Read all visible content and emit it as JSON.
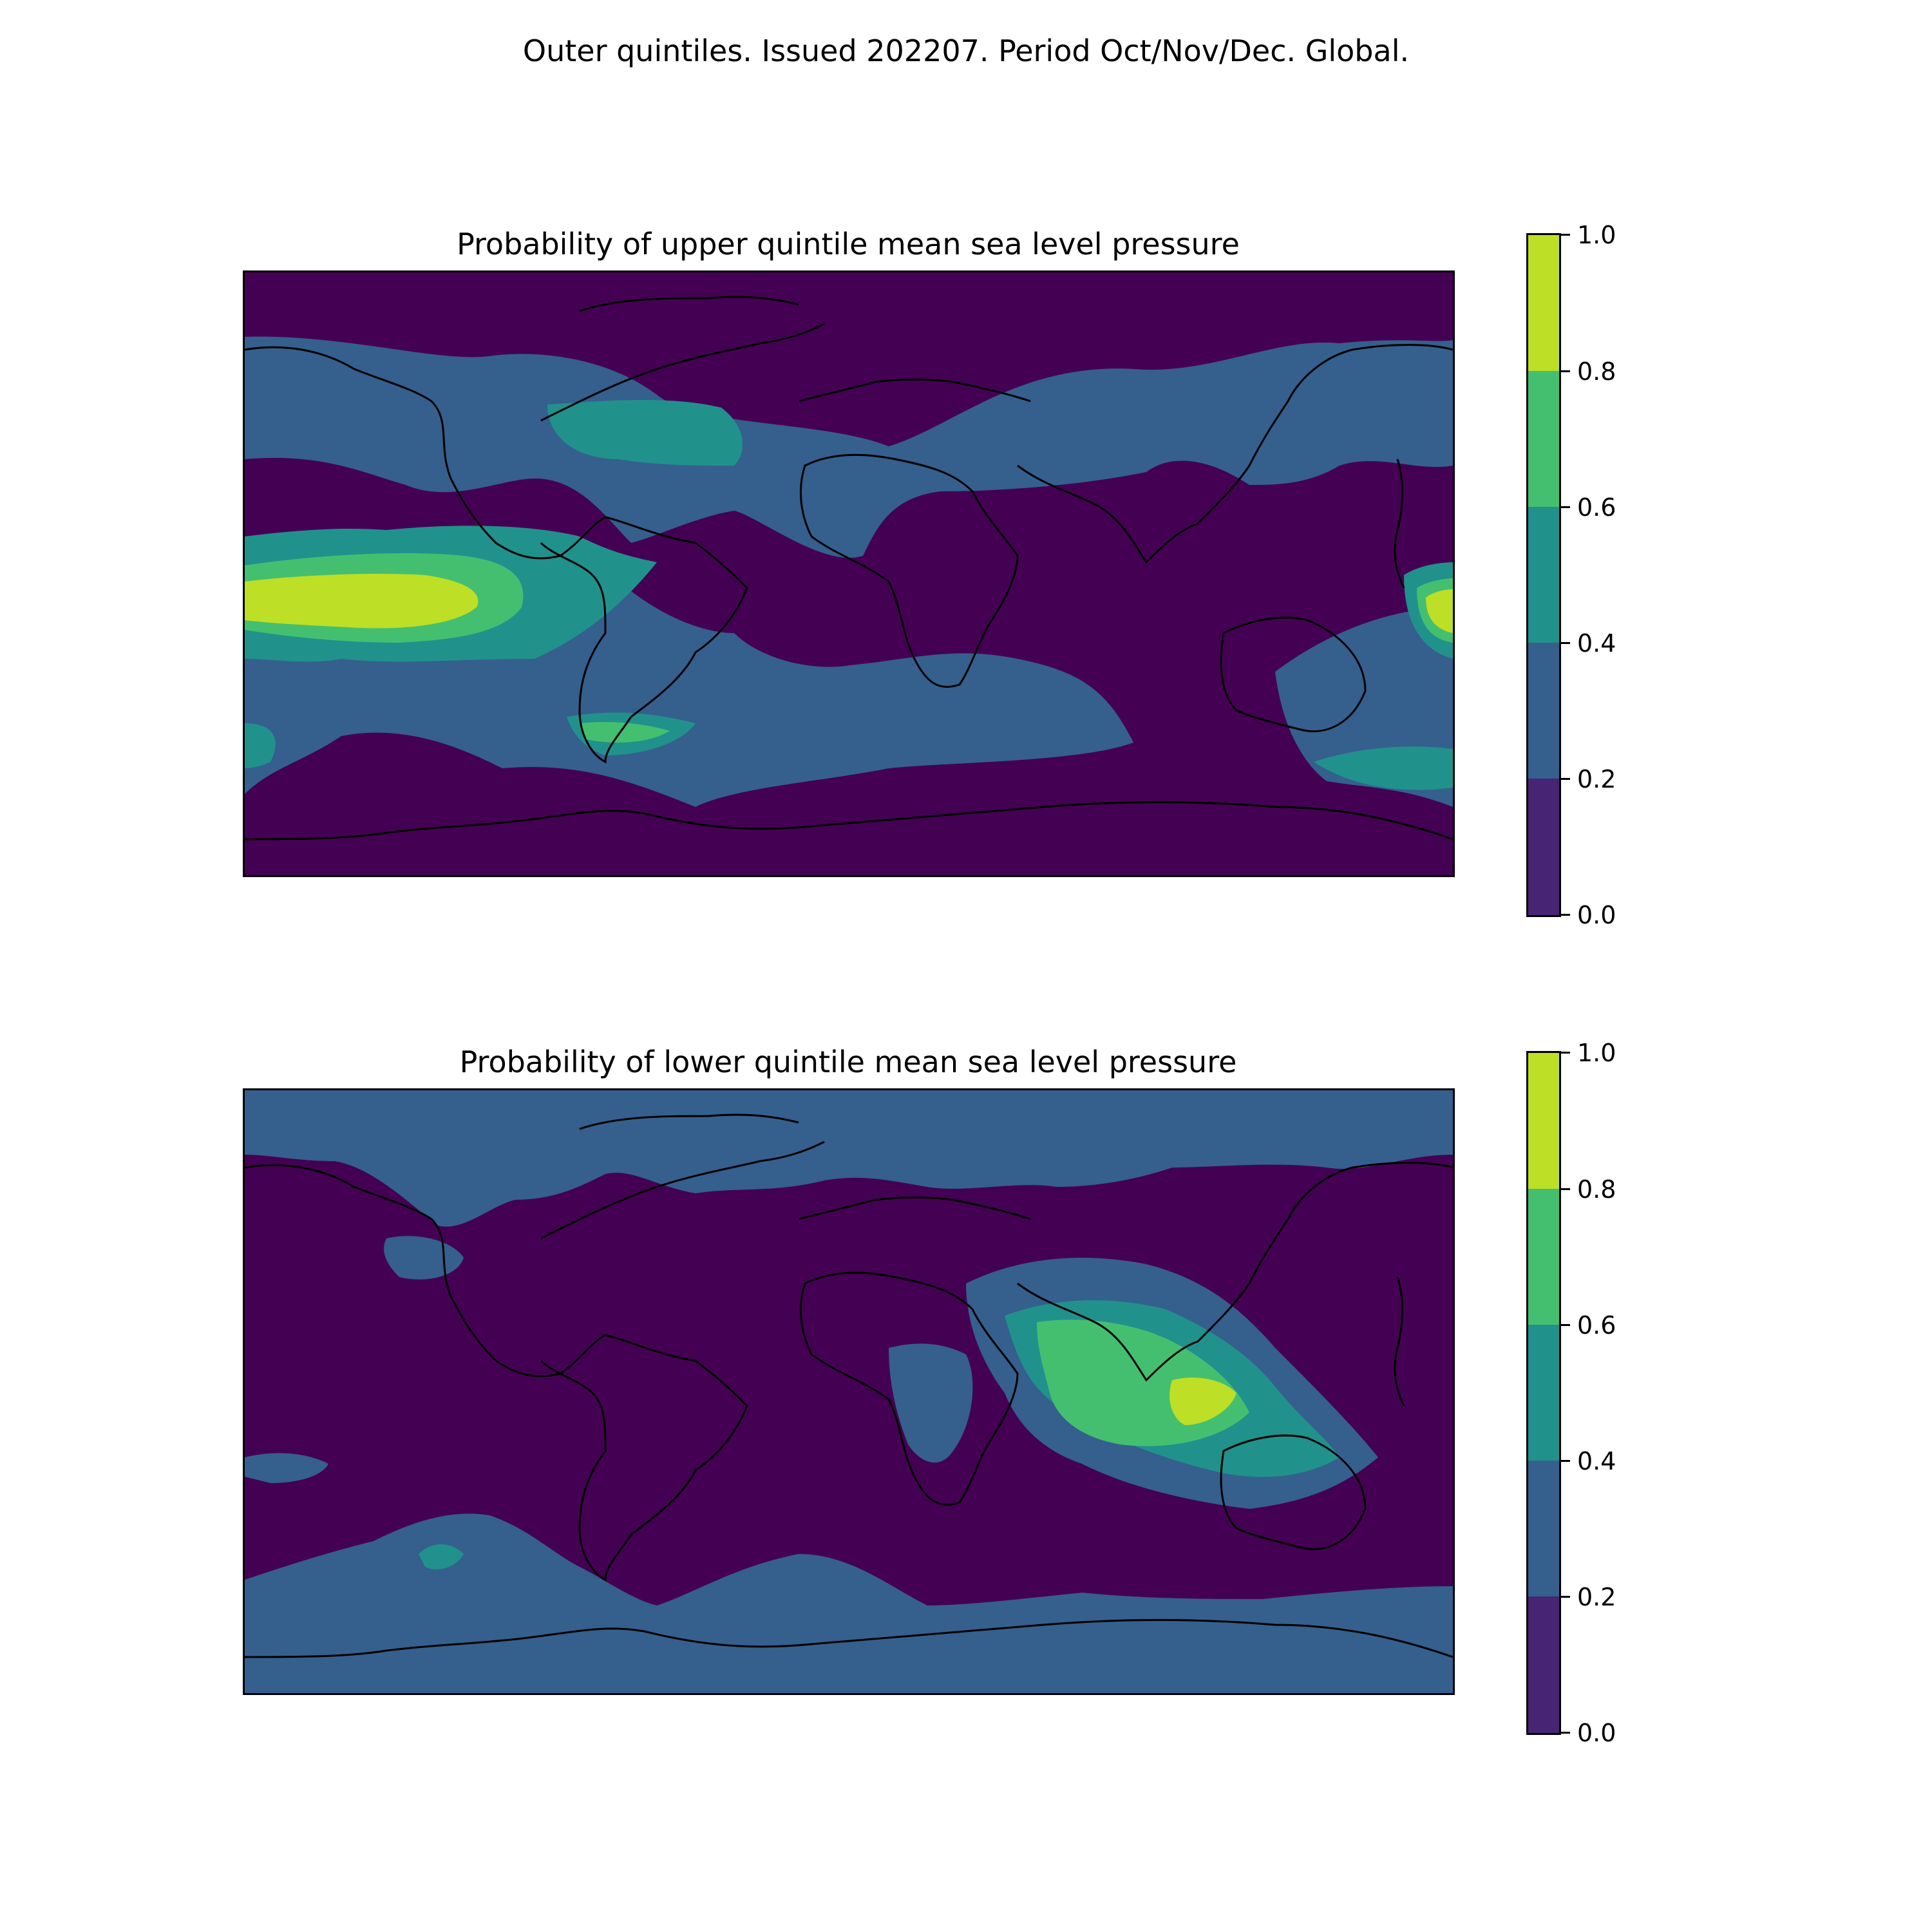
{
  "suptitle": "Outer quintiles. Issued 202207. Period Oct/Nov/Dec. Global.",
  "panels": [
    {
      "title": "Probability of upper quintile mean sea level pressure"
    },
    {
      "title": "Probability of lower quintile mean sea level pressure"
    }
  ],
  "colorbar": {
    "ticks": [
      "0.0",
      "0.2",
      "0.4",
      "0.6",
      "0.8",
      "1.0"
    ],
    "levels": [
      0.0,
      0.2,
      0.4,
      0.6,
      0.8,
      1.0
    ],
    "colors": [
      "#482475",
      "#355f8d",
      "#21918c",
      "#44bf70",
      "#bddf26"
    ]
  },
  "chart_data": [
    {
      "type": "heatmap",
      "title": "Probability of upper quintile mean sea level pressure",
      "projection": "global lat/lon",
      "color_levels": [
        0.0,
        0.2,
        0.4,
        0.6,
        0.8,
        1.0
      ],
      "colorbar_range": [
        0,
        1
      ],
      "highlights": [
        {
          "region": "central tropical Pacific",
          "range": "0.8-1.0"
        },
        {
          "region": "western Pacific near New Guinea",
          "range": "0.8-1.0"
        },
        {
          "region": "North Atlantic off North America",
          "range": "0.4-0.6"
        },
        {
          "region": "South Atlantic off Argentina",
          "range": "0.4-0.8"
        },
        {
          "region": "southwest Pacific near New Zealand",
          "range": "0.4-0.6"
        },
        {
          "region": "polar and Indian Ocean",
          "range": "0.0-0.2"
        }
      ]
    },
    {
      "type": "heatmap",
      "title": "Probability of lower quintile mean sea level pressure",
      "projection": "global lat/lon",
      "color_levels": [
        0.0,
        0.2,
        0.4,
        0.6,
        0.8,
        1.0
      ],
      "colorbar_range": [
        0,
        1
      ],
      "highlights": [
        {
          "region": "Maritime Continent / northern Australia",
          "range": "0.8-1.0"
        },
        {
          "region": "eastern Indian Ocean",
          "range": "0.6-0.8"
        },
        {
          "region": "Arabian Sea / Bay of Bengal",
          "range": "0.4-0.6"
        },
        {
          "region": "high latitudes / Antarctica margin",
          "range": "0.2-0.4"
        },
        {
          "region": "tropical Pacific and Atlantic",
          "range": "0.0-0.2"
        }
      ]
    }
  ]
}
